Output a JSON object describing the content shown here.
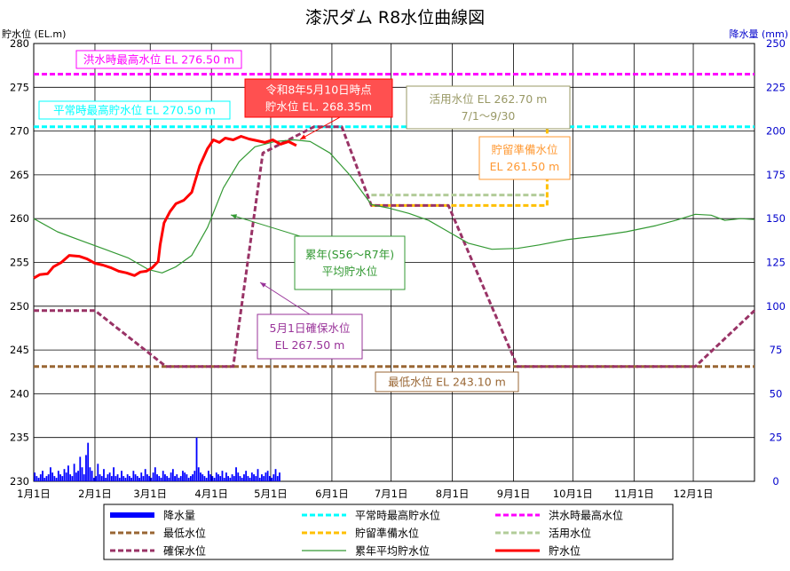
{
  "chart_data": {
    "type": "line",
    "title": "漆沢ダム R8水位曲線図",
    "ylabel_left": "貯水位 (EL.m)",
    "ylabel_right": "降水量 (mm)",
    "ylim_left": [
      230,
      280
    ],
    "ylim_right": [
      0,
      250
    ],
    "y_ticks_left": [
      "230",
      "235",
      "240",
      "245",
      "250",
      "255",
      "260",
      "265",
      "270",
      "275",
      "280"
    ],
    "y_ticks_right": [
      "0",
      "25",
      "50",
      "75",
      "100",
      "125",
      "150",
      "175",
      "200",
      "225",
      "250"
    ],
    "x_ticks": [
      "1月1日",
      "2月1日",
      "3月1日",
      "4月1日",
      "5月1日",
      "6月1日",
      "7月1日",
      "8月1日",
      "9月1日",
      "10月1日",
      "11月1日",
      "12月1日"
    ],
    "x_tick_days": [
      0,
      31,
      59,
      90,
      120,
      151,
      181,
      212,
      243,
      273,
      304,
      334
    ],
    "x_max_day": 365,
    "grid": true,
    "series": [
      {
        "name": "洪水時最高水位",
        "color": "#ff00ff",
        "style": "dashed",
        "width": 3,
        "points": [
          [
            0,
            276.5
          ],
          [
            365,
            276.5
          ]
        ]
      },
      {
        "name": "平常時最高貯水位",
        "color": "#00ffff",
        "style": "dashed",
        "width": 3,
        "points": [
          [
            0,
            270.5
          ],
          [
            365,
            270.5
          ]
        ]
      },
      {
        "name": "最低水位",
        "color": "#996633",
        "style": "dashed",
        "width": 3,
        "points": [
          [
            0,
            243.1
          ],
          [
            365,
            243.1
          ]
        ]
      },
      {
        "name": "活用水位",
        "color": "#b2cc99",
        "style": "dashed",
        "width": 3,
        "points": [
          [
            171,
            262.7
          ],
          [
            260,
            262.7
          ]
        ]
      },
      {
        "name": "貯留準備水位",
        "color": "#ffc000",
        "style": "dashed",
        "width": 3,
        "points": [
          [
            171,
            261.5
          ],
          [
            260,
            261.5
          ],
          [
            260,
            270.5
          ]
        ]
      },
      {
        "name": "確保水位",
        "color": "#993366",
        "style": "dashed",
        "width": 3,
        "points": [
          [
            0,
            249.5
          ],
          [
            31,
            249.5
          ],
          [
            67,
            243.1
          ],
          [
            101,
            243.1
          ],
          [
            116,
            267.5
          ],
          [
            142,
            270.5
          ],
          [
            156,
            270.5
          ],
          [
            171,
            261.5
          ],
          [
            210,
            261.5
          ],
          [
            245,
            243.1
          ],
          [
            335,
            243.1
          ],
          [
            365,
            249.5
          ]
        ]
      },
      {
        "name": "累年平均貯水位",
        "color": "#339933",
        "style": "solid",
        "width": 1.2,
        "points": [
          [
            0,
            260
          ],
          [
            12,
            258.5
          ],
          [
            24,
            257.5
          ],
          [
            36,
            256.5
          ],
          [
            48,
            255.5
          ],
          [
            58,
            254.2
          ],
          [
            65,
            253.8
          ],
          [
            72,
            254.5
          ],
          [
            80,
            255.8
          ],
          [
            88,
            259
          ],
          [
            96,
            263.5
          ],
          [
            104,
            266.5
          ],
          [
            112,
            268.2
          ],
          [
            122,
            268.8
          ],
          [
            132,
            269
          ],
          [
            140,
            268.8
          ],
          [
            150,
            267.5
          ],
          [
            160,
            265
          ],
          [
            171,
            261.6
          ],
          [
            180,
            261.2
          ],
          [
            190,
            260.6
          ],
          [
            200,
            259.8
          ],
          [
            210,
            258.5
          ],
          [
            220,
            257.2
          ],
          [
            232,
            256.5
          ],
          [
            245,
            256.6
          ],
          [
            256,
            257
          ],
          [
            270,
            257.6
          ],
          [
            285,
            258
          ],
          [
            300,
            258.5
          ],
          [
            315,
            259.2
          ],
          [
            325,
            259.8
          ],
          [
            335,
            260.5
          ],
          [
            343,
            260.4
          ],
          [
            350,
            259.8
          ],
          [
            358,
            260
          ],
          [
            365,
            259.9
          ]
        ]
      },
      {
        "name": "貯水位",
        "color": "#ff0000",
        "style": "solid",
        "width": 3,
        "points": [
          [
            0,
            253.2
          ],
          [
            3,
            253.6
          ],
          [
            7,
            253.7
          ],
          [
            10,
            254.5
          ],
          [
            14,
            255
          ],
          [
            18,
            255.8
          ],
          [
            23,
            255.7
          ],
          [
            27,
            255.4
          ],
          [
            31,
            254.9
          ],
          [
            35,
            254.7
          ],
          [
            39,
            254.4
          ],
          [
            43,
            254
          ],
          [
            47,
            253.8
          ],
          [
            51,
            253.5
          ],
          [
            54,
            253.9
          ],
          [
            57,
            254
          ],
          [
            60,
            254.4
          ],
          [
            63,
            255.1
          ],
          [
            64,
            257
          ],
          [
            66,
            259.5
          ],
          [
            69,
            260.8
          ],
          [
            72,
            261.7
          ],
          [
            76,
            262.1
          ],
          [
            80,
            263
          ],
          [
            84,
            266
          ],
          [
            88,
            268
          ],
          [
            91,
            269
          ],
          [
            94,
            268.7
          ],
          [
            97,
            269.2
          ],
          [
            101,
            269
          ],
          [
            105,
            269.4
          ],
          [
            109,
            269.1
          ],
          [
            113,
            268.9
          ],
          [
            117,
            268.7
          ],
          [
            121,
            269
          ],
          [
            125,
            268.5
          ],
          [
            129,
            268.8
          ],
          [
            133,
            268.35
          ]
        ]
      }
    ],
    "precip_mm": [
      5,
      3,
      2,
      4,
      6,
      2,
      3,
      4,
      8,
      5,
      3,
      2,
      6,
      4,
      3,
      7,
      5,
      9,
      4,
      3,
      10,
      5,
      6,
      14,
      8,
      4,
      15,
      22,
      8,
      6,
      2,
      3,
      10,
      4,
      3,
      7,
      2,
      4,
      5,
      3,
      8,
      3,
      4,
      2,
      6,
      3,
      2,
      4,
      3,
      2,
      6,
      4,
      3,
      2,
      5,
      3,
      7,
      4,
      3,
      2,
      5,
      8,
      4,
      3,
      2,
      6,
      4,
      3,
      2,
      5,
      7,
      3,
      4,
      2,
      3,
      6,
      5,
      4,
      2,
      3,
      4,
      6,
      25,
      8,
      5,
      4,
      3,
      2,
      6,
      4,
      3,
      2,
      5,
      4,
      3,
      6,
      2,
      5,
      3,
      2,
      4,
      3,
      8,
      5,
      3,
      2,
      4,
      6,
      3,
      2,
      5,
      4,
      3,
      7,
      2,
      4,
      3,
      5,
      6,
      3,
      2,
      4,
      7,
      3,
      5
    ],
    "annotations": [
      {
        "text": "洪水時最高水位 EL 276.50 m",
        "color": "#ff00ff"
      },
      {
        "text": "平常時最高貯水位 EL 270.50 m",
        "color": "#00ffff"
      },
      {
        "lines": [
          "令和8年5月10日時点",
          "貯水位 EL. 268.35m"
        ],
        "fill": "#ff5050",
        "color": "#ffffff"
      },
      {
        "lines": [
          "活用水位 EL 262.70 m",
          "7/1～9/30"
        ],
        "color": "#999966"
      },
      {
        "lines": [
          "貯留準備水位",
          "EL 261.50 m"
        ],
        "color": "#ff9933"
      },
      {
        "lines": [
          "累年(S56～R7年)",
          "平均貯水位"
        ],
        "color": "#339933"
      },
      {
        "lines": [
          "5月1日確保水位",
          "EL 267.50 m"
        ],
        "color": "#993399"
      },
      {
        "text": "最低水位 EL 243.10 m",
        "color": "#996633"
      }
    ],
    "legend": [
      [
        "降水量",
        "平常時最高貯水位",
        "洪水時最高水位"
      ],
      [
        "最低水位",
        "貯留準備水位",
        "活用水位"
      ],
      [
        "確保水位",
        "累年平均貯水位",
        "貯水位"
      ]
    ]
  }
}
